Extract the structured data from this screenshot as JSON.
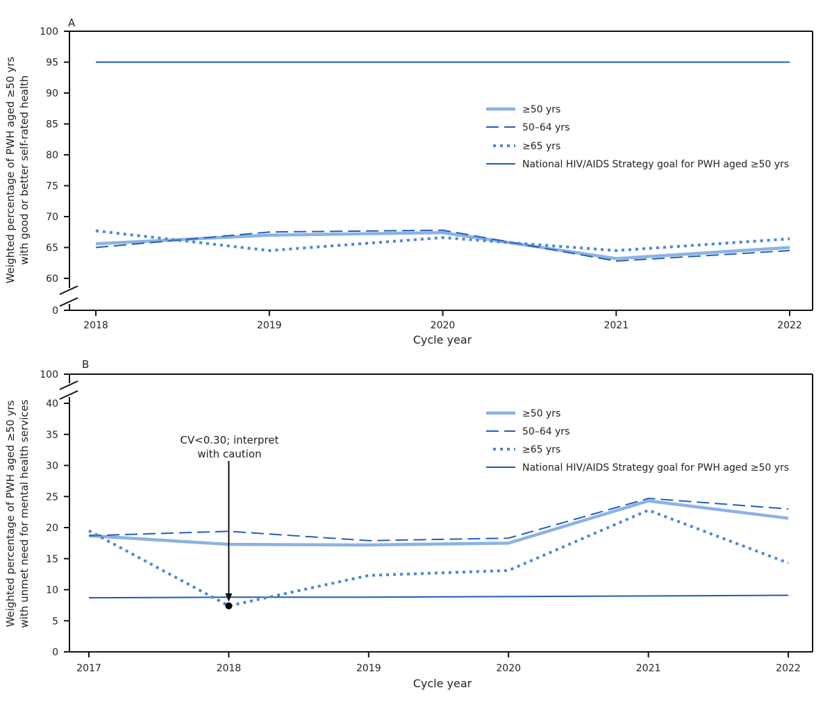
{
  "colors": {
    "all50": "#8db2e2",
    "age5064": "#1f5fbf",
    "age65": "#4a86d8",
    "goal": "#1a5cba",
    "axis": "#111111"
  },
  "chart_data": [
    {
      "type": "line",
      "panel_label": "A",
      "xlabel": "Cycle year",
      "ylabel": [
        "Weighted percentage of PWH aged ≥50 yrs",
        "with good or better self-rated health"
      ],
      "x": [
        2018,
        2019,
        2020,
        2021,
        2022
      ],
      "x_tick_labels": [
        "2018",
        "2019",
        "2020",
        "2021",
        "2022"
      ],
      "y_ticks": [
        0,
        60,
        65,
        70,
        75,
        80,
        85,
        90,
        95,
        100
      ],
      "y_axis_break": [
        0,
        60
      ],
      "ylim": [
        0,
        100
      ],
      "grid": false,
      "legend_position": "top-right",
      "series": [
        {
          "name": "≥50 yrs",
          "style": "solid-thick",
          "values": [
            65.6,
            67.0,
            67.4,
            63.2,
            65.0
          ]
        },
        {
          "name": "50–64 yrs",
          "style": "dashed",
          "values": [
            65.0,
            67.5,
            67.8,
            62.8,
            64.5
          ]
        },
        {
          "name": "≥65 yrs",
          "style": "dotted",
          "values": [
            67.7,
            64.5,
            66.6,
            64.5,
            66.4
          ]
        },
        {
          "name": "National HIV/AIDS Strategy goal for PWH aged ≥50 yrs",
          "style": "solid-thin",
          "values": [
            95,
            95,
            95,
            95,
            95
          ]
        }
      ]
    },
    {
      "type": "line",
      "panel_label": "B",
      "xlabel": "Cycle year",
      "ylabel": [
        "Weighted percentage of PWH aged ≥50 yrs",
        "with unmet need for mental health services"
      ],
      "x": [
        2017,
        2018,
        2019,
        2020,
        2021,
        2022
      ],
      "x_tick_labels": [
        "2017",
        "2018",
        "2019",
        "2020",
        "2021",
        "2022"
      ],
      "y_ticks": [
        0,
        5,
        10,
        15,
        20,
        25,
        30,
        35,
        40,
        100
      ],
      "y_axis_break": [
        40,
        100
      ],
      "ylim": [
        0,
        100
      ],
      "grid": false,
      "legend_position": "top-right",
      "series": [
        {
          "name": "≥50 yrs",
          "style": "solid-thick",
          "values": [
            18.7,
            17.3,
            17.2,
            17.5,
            24.3,
            21.5
          ]
        },
        {
          "name": "50–64 yrs",
          "style": "dashed",
          "values": [
            18.7,
            19.4,
            17.9,
            18.3,
            24.7,
            23.0
          ]
        },
        {
          "name": "≥65 yrs",
          "style": "dotted",
          "values": [
            19.5,
            7.4,
            12.3,
            13.1,
            22.8,
            14.3
          ]
        },
        {
          "name": "National HIV/AIDS Strategy goal for PWH aged ≥50 yrs",
          "style": "solid-thin",
          "values": [
            8.7,
            8.8,
            8.8,
            8.9,
            9.0,
            9.1
          ]
        }
      ],
      "annotation": {
        "text": [
          "CV<0.30; interpret",
          "with caution"
        ],
        "x": 2018,
        "y": 7.4,
        "series": "≥65 yrs"
      }
    }
  ]
}
